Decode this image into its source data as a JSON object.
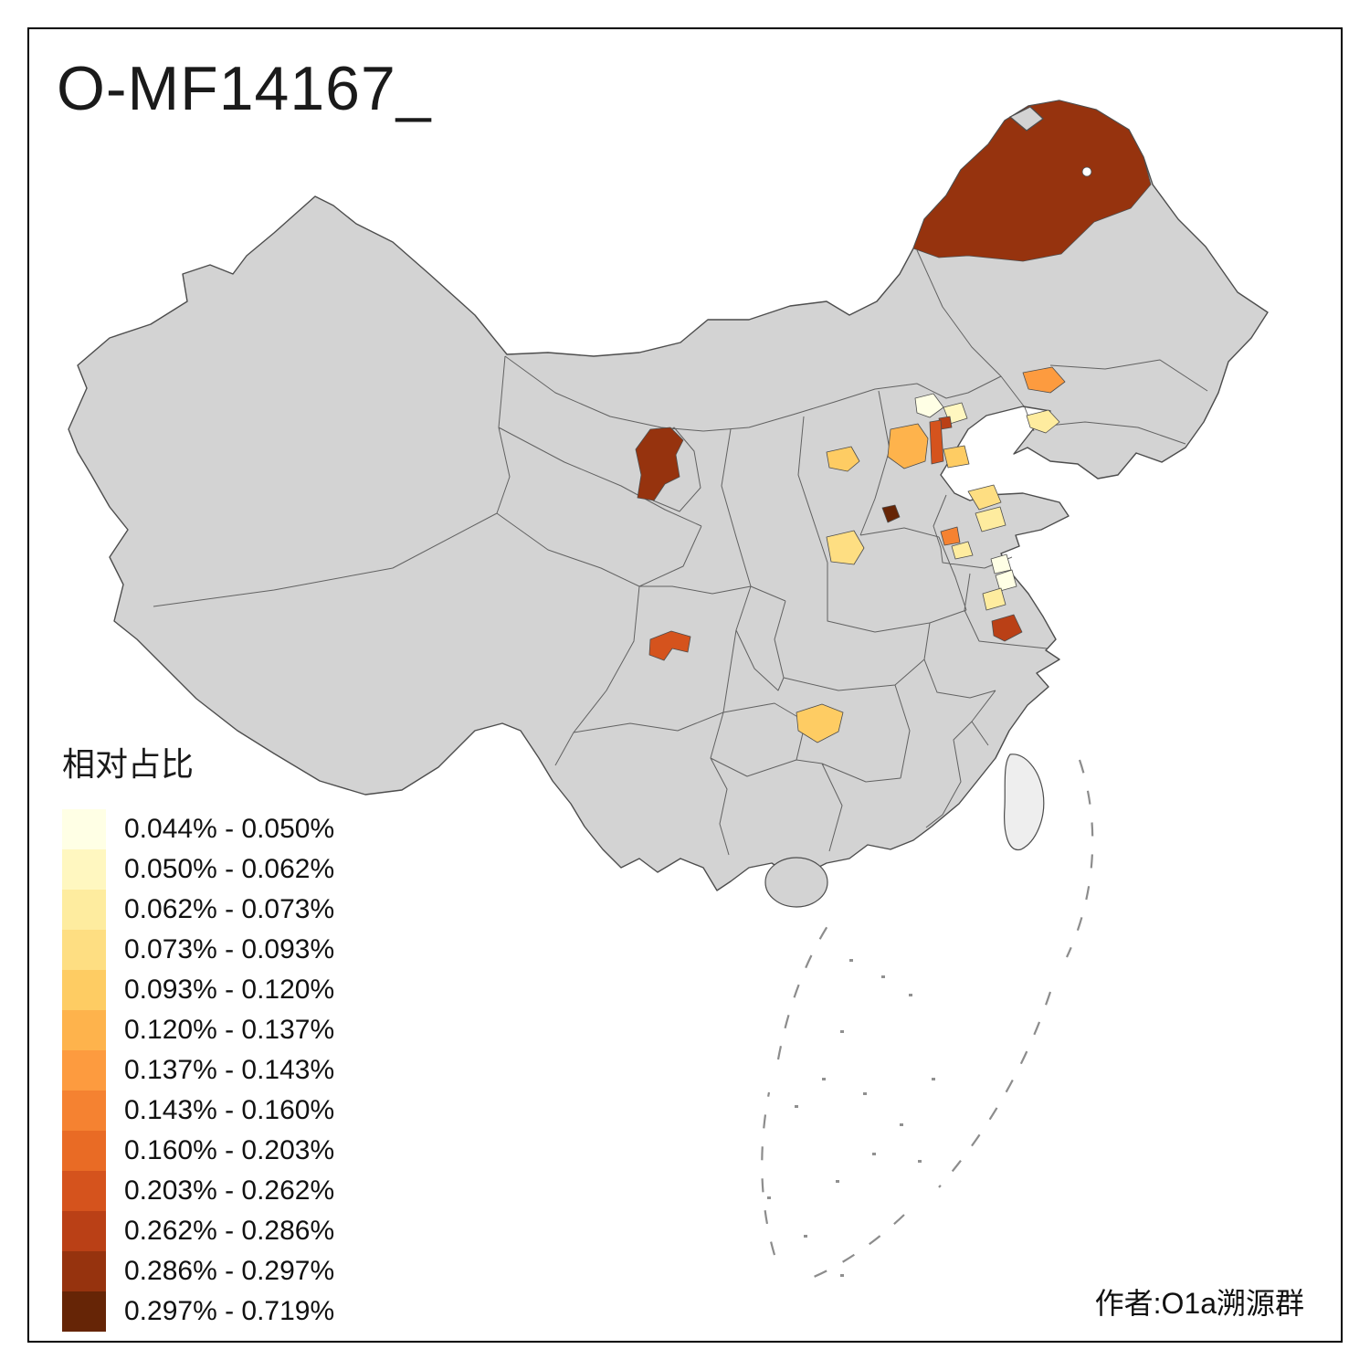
{
  "title": "O-MF14167_",
  "author": "作者:O1a溯源群",
  "legend": {
    "title": "相对占比",
    "classes": [
      {
        "label": "0.044% - 0.050%",
        "color": "#FFFFE5"
      },
      {
        "label": "0.050% - 0.062%",
        "color": "#FFF7C0"
      },
      {
        "label": "0.062% - 0.073%",
        "color": "#FEEC9F"
      },
      {
        "label": "0.073% - 0.093%",
        "color": "#FEDE82"
      },
      {
        "label": "0.093% - 0.120%",
        "color": "#FECC63"
      },
      {
        "label": "0.120% - 0.137%",
        "color": "#FEB34C"
      },
      {
        "label": "0.137% - 0.143%",
        "color": "#FD9B3F"
      },
      {
        "label": "0.143% - 0.160%",
        "color": "#F58231"
      },
      {
        "label": "0.160% - 0.203%",
        "color": "#E96B25"
      },
      {
        "label": "0.203% - 0.262%",
        "color": "#D5531D"
      },
      {
        "label": "0.262% - 0.286%",
        "color": "#BA4016"
      },
      {
        "label": "0.286% - 0.297%",
        "color": "#96330E"
      },
      {
        "label": "0.297% - 0.719%",
        "color": "#662506"
      }
    ]
  },
  "map": {
    "land_color": "#d3d3d3",
    "border_color": "#4d4d4d",
    "regions": [
      {
        "id": "r-northeast-large",
        "class": 12
      },
      {
        "id": "r-ningxia",
        "class": 12
      },
      {
        "id": "r-shanxi-dark-dot",
        "class": 13
      },
      {
        "id": "r-beijing-cream",
        "class": 1
      },
      {
        "id": "r-beijing-pale",
        "class": 2
      },
      {
        "id": "r-beijing-red-dot",
        "class": 11
      },
      {
        "id": "r-hebei-orange",
        "class": 6
      },
      {
        "id": "r-hebei-strip",
        "class": 10
      },
      {
        "id": "r-hebei-light",
        "class": 5
      },
      {
        "id": "r-liaoning-orange",
        "class": 7
      },
      {
        "id": "r-liaodong-pale",
        "class": 3
      },
      {
        "id": "r-shanxi-yellow",
        "class": 5
      },
      {
        "id": "r-shaanxi-yellow",
        "class": 4
      },
      {
        "id": "r-shandong-n-yellow",
        "class": 4
      },
      {
        "id": "r-shandong-mid-yellow",
        "class": 3
      },
      {
        "id": "r-shandong-orange-dot",
        "class": 8
      },
      {
        "id": "r-shandong-s-yellow",
        "class": 3
      },
      {
        "id": "r-shandong-cream",
        "class": 1
      },
      {
        "id": "r-jiangsu-cream",
        "class": 1
      },
      {
        "id": "r-jiangsu-pale",
        "class": 3
      },
      {
        "id": "r-jiangsu-dark",
        "class": 11
      },
      {
        "id": "r-sichuan-blob",
        "class": 10
      },
      {
        "id": "r-guizhou-blob",
        "class": 5
      }
    ]
  }
}
